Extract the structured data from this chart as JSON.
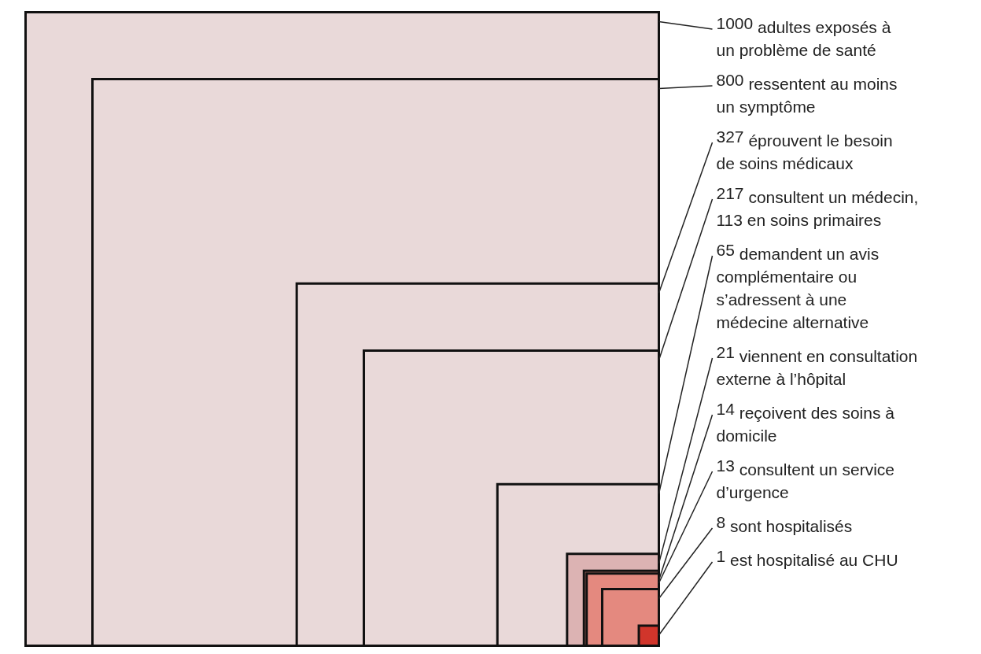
{
  "chart_data": {
    "type": "other",
    "data_labels": true,
    "categories": [
      "adultes exposés à\nun problème de santé",
      "ressentent au moins\nun symptôme",
      "éprouvent le besoin\nde soins médicaux",
      "consultent un médecin,\n113 en soins primaires",
      "demandent un avis\ncomplémentaire ou\ns’adressent à une\nmédecine alternative",
      "viennent en consultation\nexterne à l’hôpital",
      "reçoivent des soins à\ndomicile",
      "consultent un service\nd’urgence",
      "sont hospitalisés",
      "est hospitalisé au CHU"
    ],
    "values": [
      1000,
      800,
      327,
      217,
      65,
      21,
      14,
      13,
      8,
      1
    ],
    "colors": [
      "#e9d9d9",
      "#e9d9d9",
      "#e9d9d9",
      "#e9d9d9",
      "#e9d9d9",
      "#dcb3b3",
      "#e4897f",
      "#e4897f",
      "#e4897f",
      "#d1352b"
    ]
  }
}
